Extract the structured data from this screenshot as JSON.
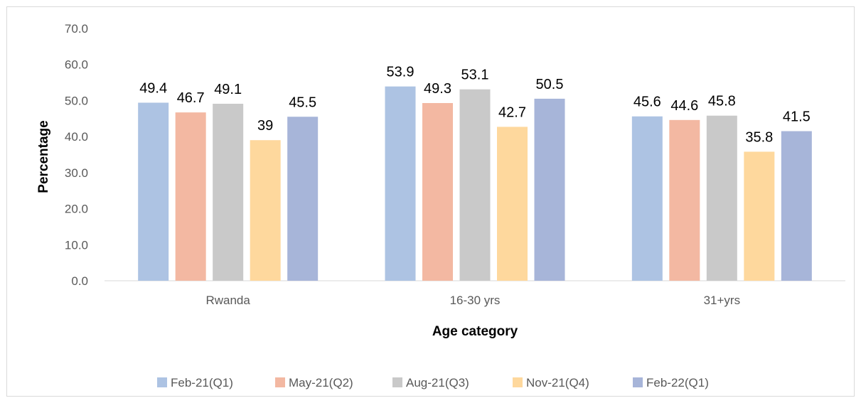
{
  "chart_data": {
    "type": "bar",
    "title": "",
    "xlabel": "Age category",
    "ylabel": "Percentage",
    "ylim": [
      0,
      70
    ],
    "yticks": [
      "0.0",
      "10.0",
      "20.0",
      "30.0",
      "40.0",
      "50.0",
      "60.0",
      "70.0"
    ],
    "categories": [
      "Rwanda",
      "16-30 yrs",
      "31+yrs"
    ],
    "series": [
      {
        "name": "Feb-21(Q1)",
        "color": "#adc3e3",
        "values": [
          49.4,
          53.9,
          45.6
        ],
        "labels": [
          "49.4",
          "53.9",
          "45.6"
        ]
      },
      {
        "name": "May-21(Q2)",
        "color": "#f3b8a2",
        "values": [
          46.7,
          49.3,
          44.6
        ],
        "labels": [
          "46.7",
          "49.3",
          "44.6"
        ]
      },
      {
        "name": "Aug-21(Q3)",
        "color": "#c9c9c9",
        "values": [
          49.1,
          53.1,
          45.8
        ],
        "labels": [
          "49.1",
          "53.1",
          "45.8"
        ]
      },
      {
        "name": "Nov-21(Q4)",
        "color": "#fed89d",
        "values": [
          39,
          42.7,
          35.8
        ],
        "labels": [
          "39",
          "42.7",
          "35.8"
        ]
      },
      {
        "name": "Feb-22(Q1)",
        "color": "#a7b5d9",
        "values": [
          45.5,
          50.5,
          41.5
        ],
        "labels": [
          "45.5",
          "50.5",
          "41.5"
        ]
      }
    ],
    "grid": false,
    "legend_position": "bottom"
  }
}
